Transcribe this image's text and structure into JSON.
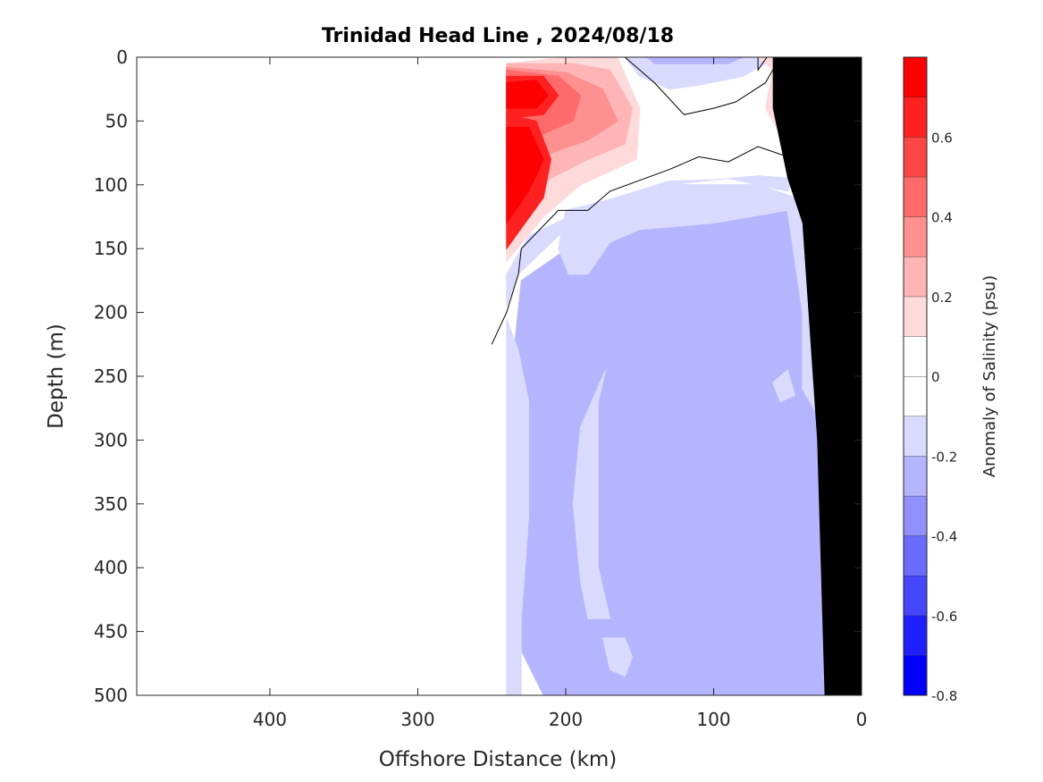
{
  "chart_data": {
    "type": "heatmap",
    "title": "Trinidad Head Line , 2024/08/18",
    "xlabel": "Offshore Distance (km)",
    "ylabel": "Depth (m)",
    "xlim": [
      490,
      0
    ],
    "ylim": [
      0,
      500
    ],
    "x_direction": "reversed",
    "y_direction": "reversed (depth increases downward)",
    "xticks": [
      400,
      300,
      200,
      100,
      0
    ],
    "yticks": [
      0,
      50,
      100,
      150,
      200,
      250,
      300,
      350,
      400,
      450,
      500
    ],
    "colorbar": {
      "label": "Anomaly of Salinity (psu)",
      "range": [
        -0.8,
        0.8
      ],
      "ticks": [
        -0.8,
        -0.6,
        -0.4,
        -0.2,
        0,
        0.2,
        0.4,
        0.6
      ],
      "levels": [
        {
          "min": -0.8,
          "max": -0.7,
          "color": "#0000ff"
        },
        {
          "min": -0.7,
          "max": -0.6,
          "color": "#2020ff"
        },
        {
          "min": -0.6,
          "max": -0.5,
          "color": "#4646ff"
        },
        {
          "min": -0.5,
          "max": -0.4,
          "color": "#6b6bff"
        },
        {
          "min": -0.4,
          "max": -0.3,
          "color": "#9090ff"
        },
        {
          "min": -0.3,
          "max": -0.2,
          "color": "#b5b5ff"
        },
        {
          "min": -0.2,
          "max": -0.1,
          "color": "#dadaff"
        },
        {
          "min": -0.1,
          "max": 0.0,
          "color": "#ffffff"
        },
        {
          "min": 0.0,
          "max": 0.1,
          "color": "#ffffff"
        },
        {
          "min": 0.1,
          "max": 0.2,
          "color": "#ffdada"
        },
        {
          "min": 0.2,
          "max": 0.3,
          "color": "#ffb5b5"
        },
        {
          "min": 0.3,
          "max": 0.4,
          "color": "#ff9090"
        },
        {
          "min": 0.4,
          "max": 0.5,
          "color": "#ff6b6b"
        },
        {
          "min": 0.5,
          "max": 0.6,
          "color": "#ff4646"
        },
        {
          "min": 0.6,
          "max": 0.7,
          "color": "#ff2020"
        },
        {
          "min": 0.7,
          "max": 0.8,
          "color": "#ff0000"
        }
      ]
    },
    "regions": [
      {
        "name": "",
        "level": -0.25,
        "color": "#b5b5ff",
        "points": [
          [
            235,
            230
          ],
          [
            228,
            260
          ],
          [
            228,
            360
          ],
          [
            230,
            420
          ],
          [
            230,
            465
          ],
          [
            215,
            500
          ],
          [
            25,
            500
          ],
          [
            30,
            280
          ],
          [
            45,
            110
          ],
          [
            70,
            100
          ],
          [
            130,
            100
          ],
          [
            170,
            130
          ],
          [
            205,
            155
          ],
          [
            230,
            175
          ]
        ]
      },
      {
        "name": "",
        "level": -0.15,
        "color": "#dadaff",
        "points": [
          [
            240,
            205
          ],
          [
            240,
            500
          ],
          [
            230,
            500
          ],
          [
            230,
            440
          ],
          [
            225,
            360
          ],
          [
            225,
            270
          ],
          [
            232,
            230
          ]
        ]
      },
      {
        "name": "",
        "level": -0.15,
        "color": "#dadaff",
        "points": [
          [
            240,
            195
          ],
          [
            232,
            170
          ],
          [
            205,
            140
          ],
          [
            170,
            125
          ],
          [
            130,
            100
          ],
          [
            90,
            95
          ],
          [
            70,
            100
          ],
          [
            50,
            105
          ],
          [
            45,
            95
          ],
          [
            70,
            93
          ],
          [
            100,
            96
          ],
          [
            130,
            97
          ],
          [
            180,
            115
          ],
          [
            225,
            140
          ],
          [
            240,
            170
          ]
        ]
      },
      {
        "name": "",
        "level": -0.15,
        "color": "#dadaff",
        "points": [
          [
            200,
            120
          ],
          [
            205,
            150
          ],
          [
            198,
            170
          ],
          [
            185,
            170
          ],
          [
            170,
            145
          ],
          [
            150,
            135
          ],
          [
            100,
            130
          ],
          [
            50,
            120
          ],
          [
            40,
            200
          ],
          [
            40,
            260
          ],
          [
            20,
            300
          ],
          [
            30,
            240
          ],
          [
            35,
            140
          ],
          [
            45,
            110
          ],
          [
            70,
            100
          ],
          [
            130,
            100
          ]
        ]
      },
      {
        "name": "",
        "level": -0.15,
        "color": "#dadaff",
        "points": [
          [
            173,
            245
          ],
          [
            178,
            270
          ],
          [
            178,
            400
          ],
          [
            170,
            440
          ],
          [
            185,
            440
          ],
          [
            190,
            410
          ],
          [
            195,
            350
          ],
          [
            190,
            290
          ],
          [
            175,
            250
          ]
        ]
      },
      {
        "name": "",
        "level": -0.15,
        "color": "#dadaff",
        "points": [
          [
            175,
            455
          ],
          [
            170,
            480
          ],
          [
            160,
            485
          ],
          [
            155,
            470
          ],
          [
            160,
            455
          ]
        ]
      },
      {
        "name": "",
        "level": -0.15,
        "color": "#dadaff",
        "points": [
          [
            50,
            245
          ],
          [
            45,
            265
          ],
          [
            55,
            270
          ],
          [
            60,
            255
          ]
        ]
      },
      {
        "name": "",
        "level": -0.15,
        "color": "#dadaff",
        "points": [
          [
            160,
            0
          ],
          [
            150,
            15
          ],
          [
            130,
            25
          ],
          [
            110,
            22
          ],
          [
            80,
            15
          ],
          [
            65,
            5
          ],
          [
            70,
            0
          ]
        ]
      },
      {
        "name": "",
        "level": -0.25,
        "color": "#b5b5ff",
        "points": [
          [
            145,
            0
          ],
          [
            140,
            5
          ],
          [
            120,
            5
          ],
          [
            90,
            5
          ],
          [
            80,
            0
          ]
        ]
      },
      {
        "name": "",
        "level": 0.15,
        "color": "#ffdada",
        "points": [
          [
            240,
            5
          ],
          [
            200,
            0
          ],
          [
            165,
            0
          ],
          [
            150,
            40
          ],
          [
            152,
            80
          ],
          [
            190,
            100
          ],
          [
            215,
            125
          ],
          [
            240,
            160
          ]
        ]
      },
      {
        "name": "",
        "level": 0.25,
        "color": "#ffb5b5",
        "points": [
          [
            240,
            5
          ],
          [
            195,
            5
          ],
          [
            170,
            10
          ],
          [
            155,
            40
          ],
          [
            160,
            68
          ],
          [
            185,
            80
          ],
          [
            210,
            95
          ],
          [
            240,
            125
          ]
        ]
      },
      {
        "name": "",
        "level": 0.35,
        "color": "#ff9090",
        "points": [
          [
            240,
            8
          ],
          [
            200,
            12
          ],
          [
            175,
            25
          ],
          [
            165,
            50
          ],
          [
            185,
            65
          ],
          [
            210,
            75
          ],
          [
            240,
            95
          ]
        ]
      },
      {
        "name": "",
        "level": 0.45,
        "color": "#ff6b6b",
        "points": [
          [
            240,
            10
          ],
          [
            205,
            15
          ],
          [
            190,
            30
          ],
          [
            195,
            50
          ],
          [
            215,
            60
          ],
          [
            240,
            70
          ]
        ]
      },
      {
        "name": "",
        "level": 0.65,
        "color": "#ff2020",
        "points": [
          [
            240,
            15
          ],
          [
            215,
            15
          ],
          [
            205,
            30
          ],
          [
            215,
            45
          ],
          [
            240,
            48
          ]
        ]
      },
      {
        "name": "",
        "level": 0.75,
        "color": "#ff0000",
        "points": [
          [
            240,
            20
          ],
          [
            220,
            18
          ],
          [
            212,
            30
          ],
          [
            220,
            40
          ],
          [
            240,
            40
          ]
        ]
      },
      {
        "name": "",
        "level": 0.65,
        "color": "#ff2020",
        "points": [
          [
            240,
            45
          ],
          [
            220,
            50
          ],
          [
            210,
            80
          ],
          [
            215,
            110
          ],
          [
            240,
            150
          ]
        ]
      },
      {
        "name": "",
        "level": 0.75,
        "color": "#ff0000",
        "points": [
          [
            240,
            55
          ],
          [
            225,
            55
          ],
          [
            215,
            80
          ],
          [
            225,
            105
          ],
          [
            240,
            130
          ]
        ]
      },
      {
        "name": "",
        "level": 0.15,
        "color": "#ffdada",
        "points": [
          [
            70,
            0
          ],
          [
            60,
            10
          ],
          [
            65,
            40
          ],
          [
            55,
            60
          ],
          [
            40,
            65
          ],
          [
            25,
            55
          ],
          [
            15,
            50
          ],
          [
            0,
            60
          ],
          [
            0,
            0
          ]
        ]
      },
      {
        "name": "",
        "level": 0.25,
        "color": "#ffb5b5",
        "points": [
          [
            10,
            20
          ],
          [
            15,
            35
          ],
          [
            10,
            45
          ],
          [
            5,
            40
          ],
          [
            5,
            25
          ]
        ]
      }
    ],
    "zero_contours": [
      [
        [
          250,
          225
        ],
        [
          240,
          200
        ],
        [
          232,
          170
        ],
        [
          230,
          150
        ],
        [
          205,
          120
        ],
        [
          185,
          120
        ],
        [
          170,
          105
        ],
        [
          130,
          88
        ],
        [
          110,
          78
        ],
        [
          90,
          82
        ],
        [
          70,
          70
        ],
        [
          50,
          78
        ],
        [
          40,
          80
        ],
        [
          20,
          85
        ],
        [
          0,
          88
        ]
      ],
      [
        [
          160,
          0
        ],
        [
          150,
          10
        ],
        [
          140,
          20
        ],
        [
          120,
          45
        ],
        [
          100,
          40
        ],
        [
          85,
          35
        ],
        [
          65,
          20
        ],
        [
          55,
          0
        ]
      ],
      [
        [
          70,
          0
        ],
        [
          70,
          10
        ],
        [
          64,
          0
        ]
      ]
    ],
    "bathymetry": {
      "color": "#000000",
      "points": [
        [
          0,
          0
        ],
        [
          0,
          500
        ],
        [
          25,
          500
        ],
        [
          30,
          300
        ],
        [
          40,
          130
        ],
        [
          50,
          95
        ],
        [
          60,
          40
        ],
        [
          60,
          0
        ]
      ]
    }
  }
}
